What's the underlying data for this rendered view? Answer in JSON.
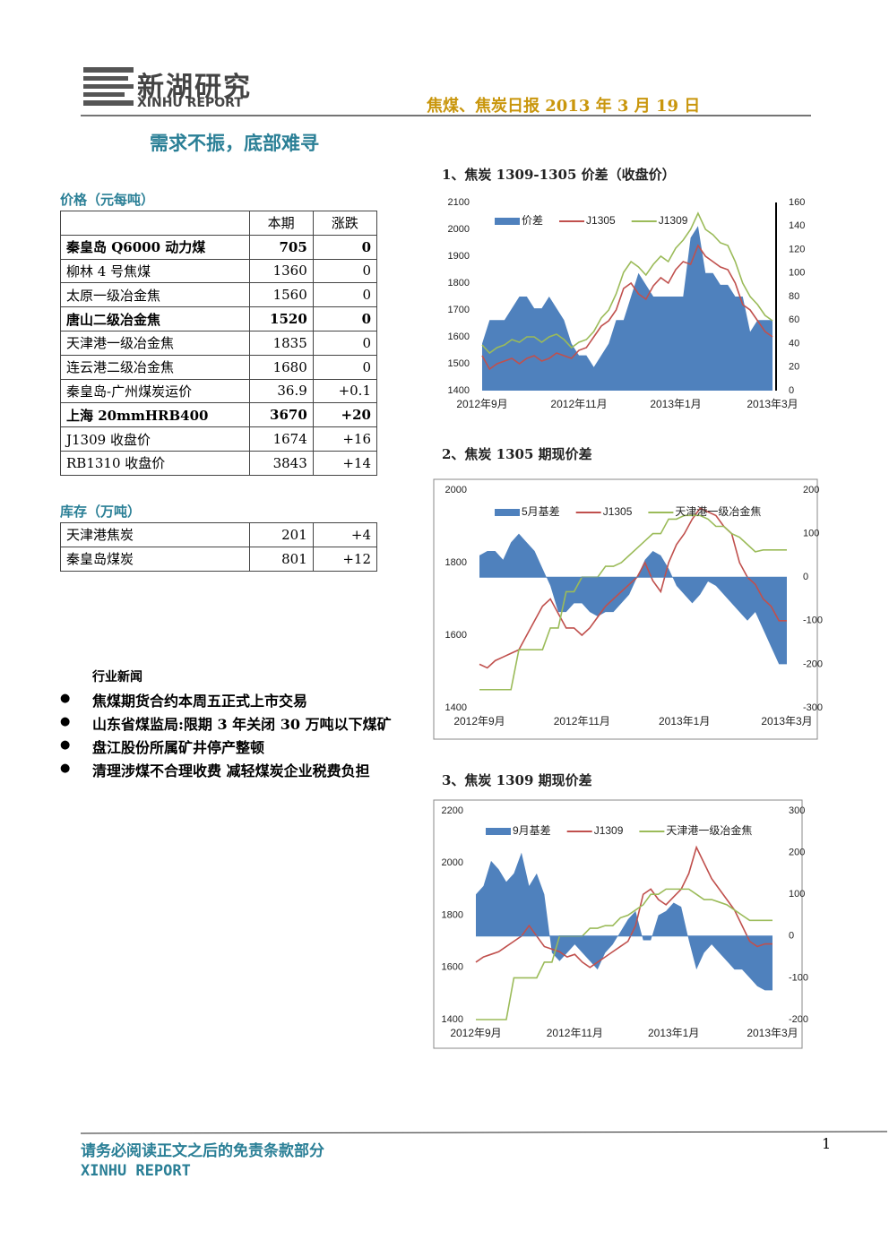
{
  "header": {
    "logo_cn": "新湖研究",
    "logo_en": "XINHU REPORT",
    "report_title": "焦煤、焦炭日报 2013 年 3 月 19 日"
  },
  "headline": "需求不振，底部难寻",
  "price_section": {
    "title": "价格（元每吨）",
    "columns": [
      "本期",
      "涨跌"
    ],
    "rows": [
      [
        "秦皇岛 Q6000 动力煤",
        "705",
        "0"
      ],
      [
        "柳林 4 号焦煤",
        "1360",
        "0"
      ],
      [
        "太原一级冶金焦",
        "1560",
        "0"
      ],
      [
        "唐山二级冶金焦",
        "1520",
        "0"
      ],
      [
        "天津港一级冶金焦",
        "1835",
        "0"
      ],
      [
        "连云港二级冶金焦",
        "1680",
        "0"
      ],
      [
        "秦皇岛-广州煤炭运价",
        "36.9",
        "+0.1"
      ],
      [
        "上海 20mmHRB400",
        "3670",
        "+20"
      ],
      [
        "J1309 收盘价",
        "1674",
        "+16"
      ],
      [
        "RB1310 收盘价",
        "3843",
        "+14"
      ]
    ]
  },
  "inventory_section": {
    "title": "库存（万吨）",
    "rows": [
      [
        "天津港焦炭",
        "201",
        "+4"
      ],
      [
        "秦皇岛煤炭",
        "801",
        "+12"
      ]
    ]
  },
  "news": {
    "title": "行业新闻",
    "items": [
      "焦煤期货合约本周五正式上市交易",
      "山东省煤监局:限期 3 年关闭 30 万吨以下煤矿",
      "盘江股份所属矿井停产整顿",
      "清理涉煤不合理收费 减轻煤炭企业税费负担"
    ]
  },
  "footer": {
    "disclaimer": "请务必阅读正文之后的免责条款部分",
    "brand": "XINHU REPORT",
    "page": "1"
  },
  "chart_data": [
    {
      "type": "combo",
      "title": "1、焦炭 1309-1305 价差（收盘价）",
      "categories": [
        "2012年9月",
        null,
        null,
        null,
        null,
        null,
        null,
        null,
        null,
        null,
        null,
        null,
        null,
        "2012年11月",
        null,
        null,
        null,
        null,
        null,
        null,
        null,
        null,
        null,
        null,
        null,
        null,
        "2013年1月",
        null,
        null,
        null,
        null,
        null,
        null,
        null,
        null,
        null,
        null,
        null,
        null,
        "2013年3月"
      ],
      "ylim": [
        1400,
        2100
      ],
      "yticks": [
        1400,
        1500,
        1600,
        1700,
        1800,
        1900,
        2000,
        2100
      ],
      "y2lim": [
        0,
        160
      ],
      "y2ticks": [
        0,
        20,
        40,
        60,
        80,
        100,
        120,
        140,
        160
      ],
      "series": [
        {
          "name": "价差",
          "color": "#4f81bd",
          "axis": "y2",
          "kind": "area",
          "values": [
            40,
            60,
            60,
            60,
            70,
            80,
            80,
            70,
            70,
            80,
            70,
            60,
            40,
            30,
            30,
            20,
            30,
            40,
            60,
            60,
            80,
            100,
            90,
            80,
            80,
            80,
            80,
            80,
            130,
            140,
            100,
            100,
            90,
            90,
            80,
            80,
            50,
            60,
            60,
            60
          ]
        },
        {
          "name": "J1305",
          "color": "#c0504d",
          "kind": "line",
          "values": [
            1530,
            1480,
            1500,
            1510,
            1520,
            1500,
            1520,
            1530,
            1510,
            1520,
            1540,
            1530,
            1520,
            1550,
            1560,
            1600,
            1640,
            1660,
            1700,
            1780,
            1800,
            1760,
            1740,
            1790,
            1820,
            1800,
            1850,
            1880,
            1870,
            1940,
            1900,
            1880,
            1860,
            1850,
            1800,
            1720,
            1700,
            1660,
            1620,
            1600
          ]
        },
        {
          "name": "J1309",
          "color": "#9bbb59",
          "kind": "line",
          "values": [
            1570,
            1540,
            1560,
            1570,
            1590,
            1580,
            1600,
            1600,
            1580,
            1600,
            1610,
            1590,
            1560,
            1580,
            1590,
            1620,
            1670,
            1700,
            1760,
            1840,
            1880,
            1860,
            1830,
            1870,
            1900,
            1880,
            1930,
            1960,
            2000,
            2060,
            2000,
            1980,
            1950,
            1940,
            1880,
            1800,
            1750,
            1720,
            1680,
            1660
          ]
        }
      ]
    },
    {
      "type": "combo",
      "title": "2、焦炭 1305 期现价差",
      "categories": [
        "2012年9月",
        null,
        null,
        null,
        null,
        null,
        null,
        null,
        null,
        null,
        null,
        null,
        null,
        "2012年11月",
        null,
        null,
        null,
        null,
        null,
        null,
        null,
        null,
        null,
        null,
        null,
        null,
        "2013年1月",
        null,
        null,
        null,
        null,
        null,
        null,
        null,
        null,
        null,
        null,
        null,
        null,
        "2013年3月"
      ],
      "ylim": [
        1400,
        2000
      ],
      "yticks": [
        1400,
        1600,
        1800,
        2000
      ],
      "y2lim": [
        -300,
        200
      ],
      "y2ticks": [
        -300,
        -200,
        -100,
        0,
        100,
        200
      ],
      "series": [
        {
          "name": "5月基差",
          "color": "#4f81bd",
          "axis": "y2",
          "kind": "area",
          "values": [
            50,
            60,
            60,
            40,
            80,
            100,
            80,
            60,
            20,
            -20,
            -80,
            -80,
            -60,
            -60,
            -80,
            -90,
            -80,
            -80,
            -60,
            -40,
            0,
            40,
            60,
            50,
            20,
            -20,
            -40,
            -60,
            -40,
            -10,
            -20,
            -40,
            -60,
            -80,
            -100,
            -80,
            -120,
            -160,
            -200,
            -200
          ]
        },
        {
          "name": "J1305",
          "color": "#c0504d",
          "kind": "line",
          "values": [
            1520,
            1510,
            1530,
            1540,
            1550,
            1560,
            1600,
            1640,
            1680,
            1700,
            1660,
            1620,
            1620,
            1600,
            1620,
            1650,
            1680,
            1700,
            1720,
            1740,
            1760,
            1800,
            1750,
            1720,
            1800,
            1850,
            1880,
            1920,
            1950,
            1940,
            1930,
            1900,
            1880,
            1800,
            1760,
            1740,
            1700,
            1680,
            1640,
            1640
          ]
        },
        {
          "name": "天津港一级冶金焦",
          "color": "#9bbb59",
          "kind": "line",
          "values": [
            1450,
            1450,
            1450,
            1450,
            1450,
            1560,
            1560,
            1560,
            1560,
            1620,
            1620,
            1720,
            1720,
            1760,
            1760,
            1760,
            1790,
            1790,
            1800,
            1820,
            1840,
            1860,
            1880,
            1880,
            1920,
            1920,
            1930,
            1930,
            1930,
            1920,
            1900,
            1900,
            1880,
            1870,
            1850,
            1830,
            1835,
            1835,
            1835,
            1835
          ]
        }
      ]
    },
    {
      "type": "combo",
      "title": "3、焦炭 1309 期现价差",
      "categories": [
        "2012年9月",
        null,
        null,
        null,
        null,
        null,
        null,
        null,
        null,
        null,
        null,
        null,
        null,
        "2012年11月",
        null,
        null,
        null,
        null,
        null,
        null,
        null,
        null,
        null,
        null,
        null,
        null,
        "2013年1月",
        null,
        null,
        null,
        null,
        null,
        null,
        null,
        null,
        null,
        null,
        null,
        null,
        "2013年3月"
      ],
      "ylim": [
        1400,
        2200
      ],
      "yticks": [
        1400,
        1600,
        1800,
        2000,
        2200
      ],
      "y2lim": [
        -200,
        300
      ],
      "y2ticks": [
        -200,
        -100,
        0,
        100,
        200,
        300
      ],
      "series": [
        {
          "name": "9月基差",
          "color": "#4f81bd",
          "axis": "y2",
          "kind": "area",
          "values": [
            100,
            120,
            180,
            160,
            130,
            150,
            200,
            120,
            150,
            100,
            -40,
            -60,
            -40,
            -20,
            -40,
            -60,
            -80,
            -40,
            -20,
            10,
            40,
            60,
            -10,
            -10,
            50,
            60,
            80,
            70,
            -10,
            -80,
            -40,
            -20,
            -40,
            -60,
            -80,
            -80,
            -100,
            -120,
            -130,
            -130
          ]
        },
        {
          "name": "J1309",
          "color": "#c0504d",
          "kind": "line",
          "values": [
            1620,
            1640,
            1650,
            1660,
            1680,
            1700,
            1720,
            1760,
            1720,
            1680,
            1670,
            1660,
            1640,
            1650,
            1620,
            1600,
            1620,
            1640,
            1660,
            1680,
            1700,
            1760,
            1880,
            1900,
            1860,
            1840,
            1870,
            1900,
            1960,
            2060,
            2000,
            1940,
            1900,
            1860,
            1820,
            1760,
            1700,
            1680,
            1690,
            1690
          ]
        },
        {
          "name": "天津港一级冶金焦",
          "color": "#9bbb59",
          "kind": "line",
          "values": [
            1400,
            1400,
            1400,
            1400,
            1400,
            1560,
            1560,
            1560,
            1560,
            1620,
            1620,
            1720,
            1720,
            1720,
            1720,
            1750,
            1750,
            1760,
            1760,
            1790,
            1800,
            1820,
            1840,
            1880,
            1880,
            1900,
            1900,
            1900,
            1900,
            1880,
            1860,
            1860,
            1850,
            1840,
            1820,
            1800,
            1780,
            1780,
            1780,
            1780
          ]
        }
      ]
    }
  ]
}
